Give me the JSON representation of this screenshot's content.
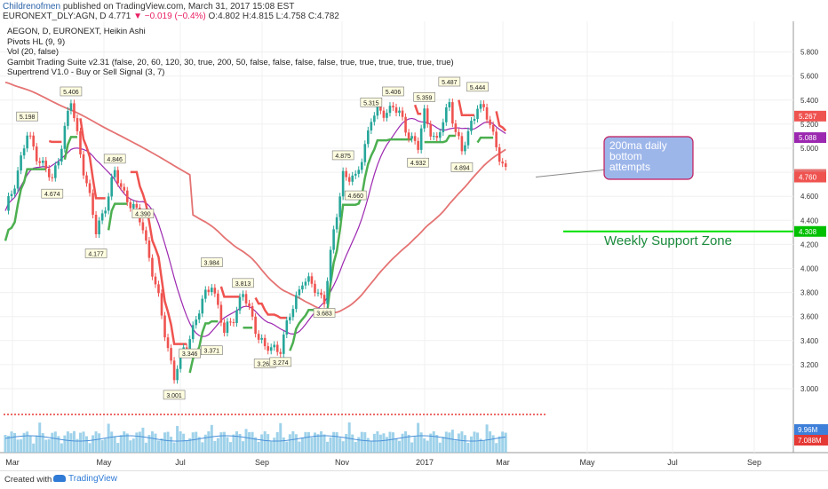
{
  "header": {
    "author": "Childrenofmen",
    "published_text": "published on TradingView.com, March 31, 2017 15:08 EST",
    "symbol_line": "EURONEXT_DLY:AGN, D",
    "last": "4.771",
    "change": "−0.019 (−0.4%)",
    "ohlc": "O:4.802 H:4.815 L:4.758 C:4.782"
  },
  "legend": {
    "title": "AEGON, D, EURONEXT, Heikin Ashi",
    "items": [
      "Pivots HL (9, 9)",
      "Vol (20, false)",
      "Gambit Trading Suite v2.31 (false, 20, 60, 120, 30, true, 200, 50, false, false, false, false, true, true, true, true, true, true)",
      "Supertrend V1.0 - Buy or Sell Signal (3, 7)"
    ]
  },
  "annotations": {
    "callout": [
      "200ma daily",
      "bottom",
      "attempts"
    ],
    "support": "Weekly Support Zone"
  },
  "footer": {
    "created_with": "Created with",
    "brand": "TradingView"
  },
  "colors": {
    "up_candle": "#26a69a",
    "down_candle": "#ef5350",
    "ma200": "#e57373",
    "ma50": "#9c27b0",
    "supertrend_up": "#4caf50",
    "supertrend_down": "#ef5350",
    "support": "#00e000",
    "callout_fill": "#9db6ea",
    "callout_border": "#c2185b",
    "volume": "#8ecae6"
  },
  "chart_data": {
    "type": "candlestick",
    "ylim": [
      2.9,
      5.9
    ],
    "y_ticks": [
      "5.800",
      "5.600",
      "5.400",
      "5.200",
      "5.000",
      "4.800",
      "4.600",
      "4.400",
      "4.200",
      "4.000",
      "3.800",
      "3.600",
      "3.400",
      "3.200",
      "3.000"
    ],
    "x_ticks": [
      "Mar",
      "May",
      "Jul",
      "Sep",
      "Nov",
      "2017",
      "Mar",
      "May",
      "Jul",
      "Sep"
    ],
    "price_labels": [
      {
        "text": "5.267",
        "value": 5.267,
        "color": "#ef5350"
      },
      {
        "text": "5.088",
        "value": 5.088,
        "color": "#9c27b0"
      },
      {
        "text": "4.782",
        "value": 4.782,
        "color": "#e57373"
      },
      {
        "text": "4.760",
        "value": 4.76,
        "color": "#ef5350"
      },
      {
        "text": "4.308",
        "value": 4.308,
        "color": "#00c000"
      }
    ],
    "volume_labels": [
      "9.96M",
      "7.088M"
    ],
    "weekly_support": 4.308,
    "pivot_labels": [
      {
        "text": "5.198",
        "i": 7,
        "value": 5.198,
        "pos": "above"
      },
      {
        "text": "4.674",
        "i": 15,
        "value": 4.674,
        "pos": "below"
      },
      {
        "text": "5.406",
        "i": 21,
        "value": 5.406,
        "pos": "above"
      },
      {
        "text": "4.846",
        "i": 35,
        "value": 4.846,
        "pos": "above"
      },
      {
        "text": "4.177",
        "i": 29,
        "value": 4.177,
        "pos": "below"
      },
      {
        "text": "4.390",
        "i": 44,
        "value": 4.39,
        "pos": "above"
      },
      {
        "text": "3.001",
        "i": 54,
        "value": 3.001,
        "pos": "below"
      },
      {
        "text": "3.984",
        "i": 66,
        "value": 3.984,
        "pos": "above"
      },
      {
        "text": "3.346",
        "i": 59,
        "value": 3.346,
        "pos": "below"
      },
      {
        "text": "3.371",
        "i": 66,
        "value": 3.371,
        "pos": "below"
      },
      {
        "text": "3.813",
        "i": 76,
        "value": 3.813,
        "pos": "above"
      },
      {
        "text": "3.262",
        "i": 83,
        "value": 3.262,
        "pos": "below"
      },
      {
        "text": "3.274",
        "i": 88,
        "value": 3.274,
        "pos": "below"
      },
      {
        "text": "3.683",
        "i": 102,
        "value": 3.683,
        "pos": "below"
      },
      {
        "text": "4.875",
        "i": 108,
        "value": 4.875,
        "pos": "above"
      },
      {
        "text": "4.660",
        "i": 112,
        "value": 4.66,
        "pos": "below"
      },
      {
        "text": "5.315",
        "i": 117,
        "value": 5.315,
        "pos": "above"
      },
      {
        "text": "5.406",
        "i": 124,
        "value": 5.406,
        "pos": "above"
      },
      {
        "text": "5.359",
        "i": 134,
        "value": 5.359,
        "pos": "above"
      },
      {
        "text": "4.932",
        "i": 132,
        "value": 4.932,
        "pos": "below"
      },
      {
        "text": "5.487",
        "i": 142,
        "value": 5.487,
        "pos": "above"
      },
      {
        "text": "4.894",
        "i": 146,
        "value": 4.894,
        "pos": "below"
      },
      {
        "text": "5.444",
        "i": 151,
        "value": 5.444,
        "pos": "above"
      }
    ]
  }
}
